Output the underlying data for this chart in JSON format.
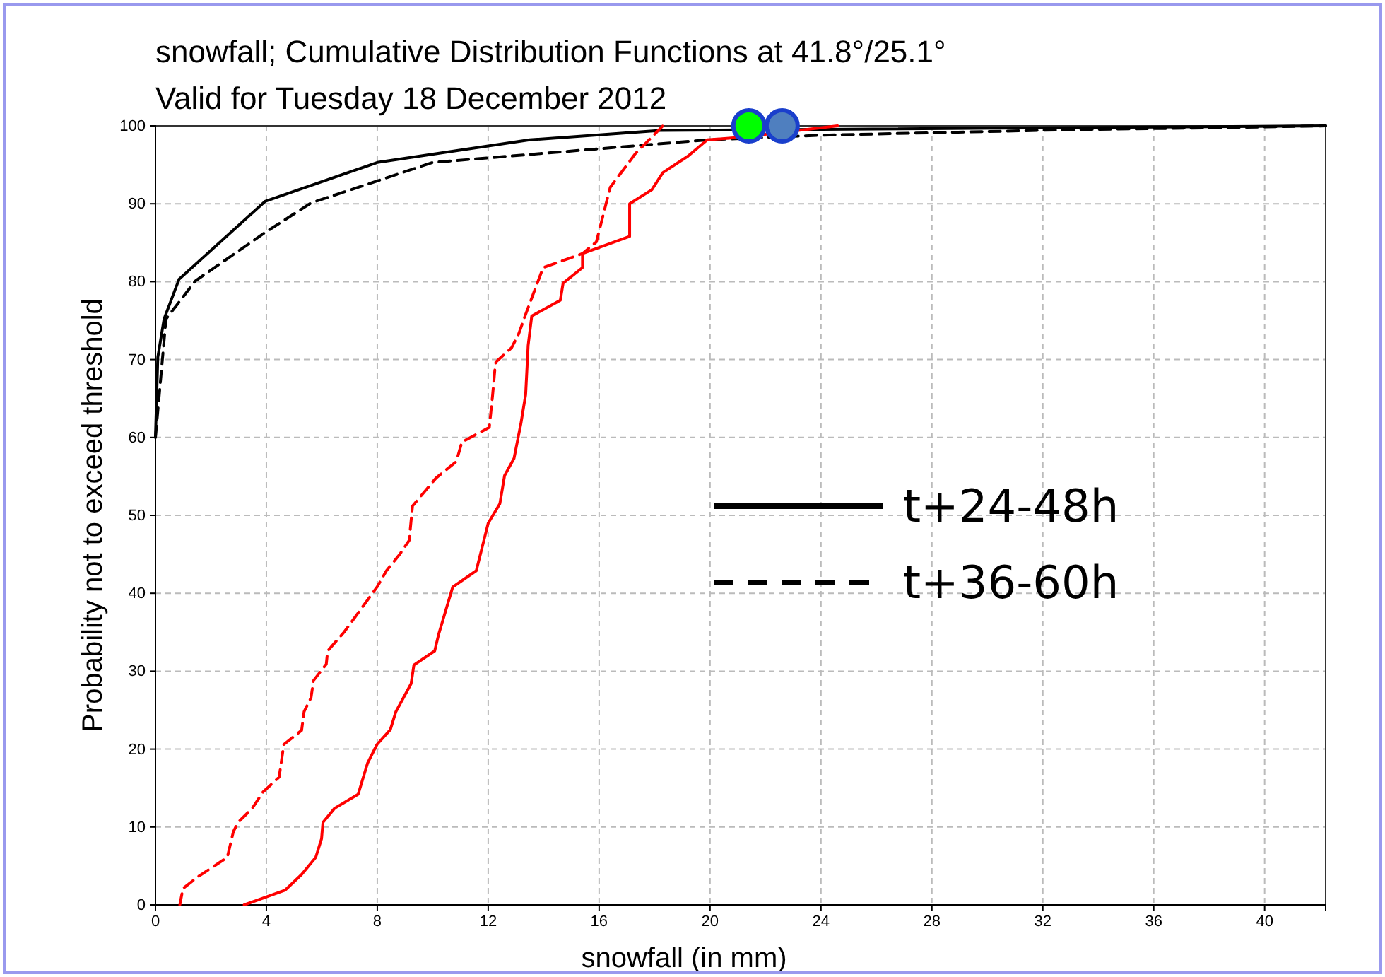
{
  "chart_data": {
    "type": "line",
    "title": "snowfall; Cumulative Distribution Functions at 41.8°/25.1°",
    "subtitle": "Valid for Tuesday 18 December 2012",
    "xlabel": "snowfall  (in mm)",
    "ylabel": "Probability not to exceed threshold",
    "xlim": [
      0,
      42.2
    ],
    "xticks": [
      0,
      4,
      8,
      12,
      16,
      20,
      24,
      28,
      32,
      36,
      40
    ],
    "ylim": [
      0,
      100
    ],
    "yticks": [
      0,
      10,
      20,
      30,
      40,
      50,
      60,
      70,
      80,
      90,
      100
    ],
    "grid": true,
    "legend": "right",
    "series": [
      {
        "name": "t+24-48h",
        "color": "#000000",
        "line_style": "solid",
        "x": [
          0,
          0.085,
          0.31,
          0.85,
          3.95,
          8.0,
          13.5,
          18.2,
          42.2
        ],
        "values": [
          60,
          70.3,
          75.2,
          80.3,
          90.3,
          95.3,
          98.2,
          99.4,
          100
        ]
      },
      {
        "name": "t+36-60h",
        "color": "#000000",
        "line_style": "dashed",
        "x": [
          0,
          0.38,
          1.44,
          3.95,
          5.61,
          10.0,
          19.9,
          24.0,
          33.0,
          39.1,
          42.2
        ],
        "values": [
          60,
          75.2,
          80.1,
          86.3,
          90.1,
          95.3,
          98.2,
          98.8,
          99.5,
          99.8,
          100
        ]
      },
      {
        "color": "#ff0000",
        "line_style": "solid",
        "x": [
          3.2,
          4.68,
          5.27,
          5.78,
          5.99,
          6.04,
          6.46,
          7.31,
          7.65,
          7.99,
          8.47,
          8.67,
          9.22,
          9.32,
          10.07,
          10.21,
          10.72,
          11.57,
          12.0,
          12.42,
          12.59,
          12.93,
          13.18,
          13.35,
          13.44,
          13.57,
          14.6,
          14.7,
          15.4,
          15.4,
          17.1,
          17.1,
          17.9,
          18.3,
          19.2,
          19.9,
          21.0,
          24.6
        ],
        "values": [
          0,
          1.9,
          3.9,
          6.1,
          8.5,
          10.6,
          12.4,
          14.2,
          18.2,
          20.6,
          22.5,
          24.8,
          28.4,
          30.8,
          32.6,
          34.7,
          40.8,
          42.9,
          49.0,
          51.5,
          55.1,
          57.3,
          61.8,
          65.5,
          71.8,
          75.6,
          77.6,
          79.8,
          81.8,
          83.6,
          85.8,
          90.0,
          91.8,
          94.0,
          96.1,
          98.2,
          98.5,
          100
        ]
      },
      {
        "color": "#ff0000",
        "line_style": "dashed",
        "x": [
          0.88,
          0.99,
          1.53,
          2.59,
          2.81,
          2.98,
          3.49,
          3.88,
          4.46,
          4.63,
          5.27,
          5.36,
          5.61,
          5.7,
          6.16,
          6.21,
          6.8,
          7.99,
          8.33,
          8.81,
          9.15,
          9.27,
          10.12,
          10.85,
          11.05,
          12.04,
          12.16,
          12.25,
          12.28,
          12.84,
          13.1,
          13.35,
          13.98,
          15.4,
          15.9,
          16.4,
          17.3,
          18.3
        ],
        "values": [
          0,
          2.1,
          3.6,
          6.1,
          9.4,
          10.6,
          12.4,
          14.5,
          16.4,
          20.6,
          22.4,
          24.8,
          26.6,
          28.8,
          30.9,
          32.6,
          35.0,
          40.8,
          42.9,
          45.0,
          46.8,
          51.2,
          54.8,
          56.9,
          59.4,
          61.3,
          65.5,
          69.1,
          69.7,
          71.5,
          73.3,
          75.8,
          81.8,
          83.6,
          85.1,
          92.1,
          96.4,
          100
        ]
      },
      {
        "type": "scatter",
        "marker": "circle",
        "x": [
          21.4,
          22.6
        ],
        "values": [
          100,
          100
        ],
        "colors": [
          "#00ff00",
          "#4f7fbf"
        ]
      }
    ]
  }
}
